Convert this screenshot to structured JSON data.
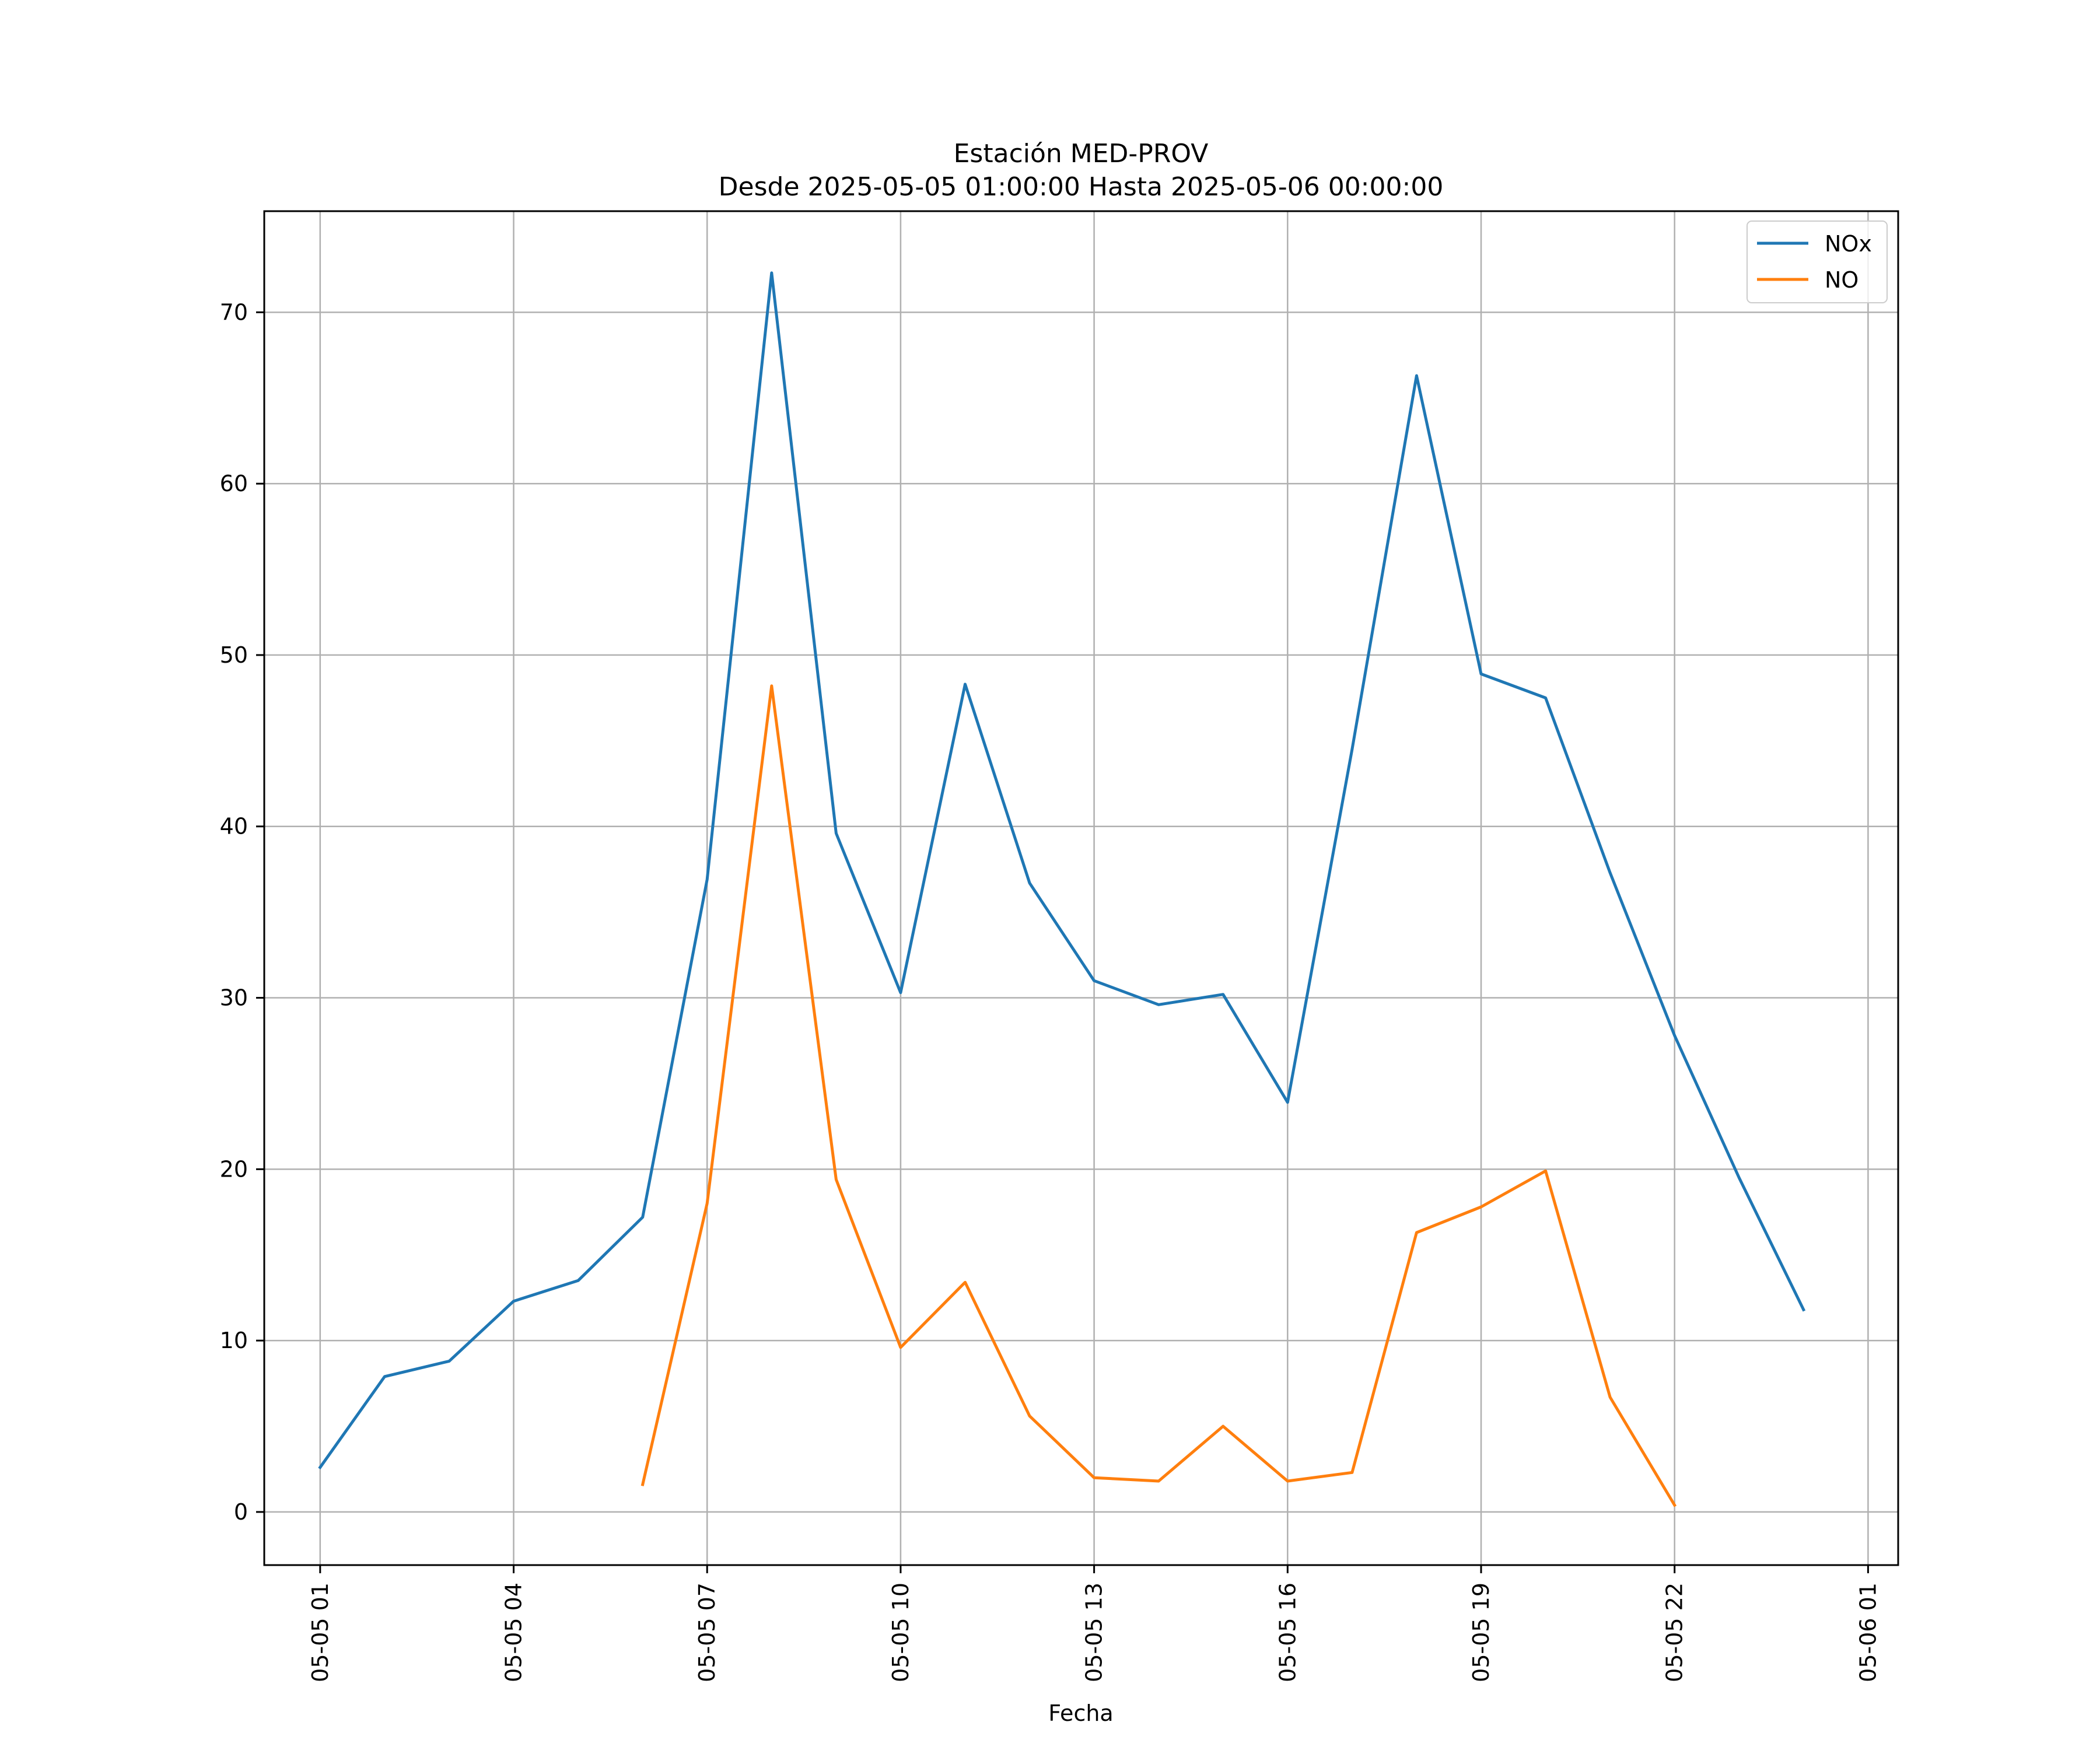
{
  "chart_data": {
    "type": "line",
    "title": "Estación MED-PROV",
    "subtitle": "Desde 2025-05-05 01:00:00 Hasta 2025-05-06 00:00:00",
    "xlabel": "Fecha",
    "ylabel": "",
    "x": [
      "05-05 01",
      "05-05 02",
      "05-05 03",
      "05-05 04",
      "05-05 05",
      "05-05 06",
      "05-05 07",
      "05-05 08",
      "05-05 09",
      "05-05 10",
      "05-05 11",
      "05-05 12",
      "05-05 13",
      "05-05 14",
      "05-05 15",
      "05-05 16",
      "05-05 17",
      "05-05 18",
      "05-05 19",
      "05-05 20",
      "05-05 21",
      "05-05 22",
      "05-05 23",
      "05-06 00"
    ],
    "series": [
      {
        "name": "NOx",
        "color": "#1f77b4",
        "values": [
          2.6,
          7.9,
          8.8,
          12.3,
          13.5,
          17.2,
          36.9,
          72.3,
          39.6,
          30.3,
          48.3,
          36.7,
          31.0,
          29.6,
          30.2,
          23.9,
          44.5,
          66.3,
          48.9,
          47.5,
          37.3,
          27.8,
          19.5,
          11.8
        ]
      },
      {
        "name": "NO",
        "color": "#ff7f0e",
        "values": [
          null,
          null,
          null,
          null,
          null,
          1.6,
          18.0,
          48.2,
          19.4,
          9.6,
          13.4,
          5.6,
          2.0,
          1.8,
          5.0,
          1.8,
          2.3,
          16.3,
          17.8,
          19.9,
          6.7,
          0.4,
          null,
          null
        ]
      }
    ],
    "xticks": [
      "05-05 01",
      "05-05 04",
      "05-05 07",
      "05-05 10",
      "05-05 13",
      "05-05 16",
      "05-05 19",
      "05-05 22",
      "05-06 01"
    ],
    "xlim": [
      "05-05 00:08",
      "05-06 01:28"
    ],
    "yticks": [
      0,
      10,
      20,
      30,
      40,
      50,
      60,
      70
    ],
    "ylim": [
      -3.1,
      75.9
    ],
    "grid": true,
    "legend": "top-right"
  }
}
